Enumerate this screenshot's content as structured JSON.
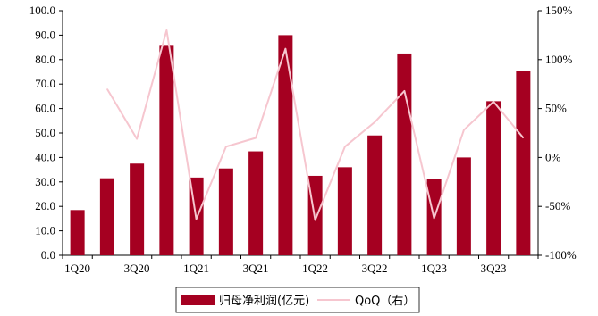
{
  "chart_data": {
    "type": "bar+line",
    "categories": [
      "1Q20",
      "2Q20",
      "3Q20",
      "4Q20",
      "1Q21",
      "2Q21",
      "3Q21",
      "4Q21",
      "1Q22",
      "2Q22",
      "3Q22",
      "4Q22",
      "1Q23",
      "2Q23",
      "3Q23",
      "4Q23"
    ],
    "x_tick_labels": [
      "1Q20",
      "",
      "3Q20",
      "",
      "1Q21",
      "",
      "3Q21",
      "",
      "1Q22",
      "",
      "3Q22",
      "",
      "1Q23",
      "",
      "3Q23",
      ""
    ],
    "series": [
      {
        "name": "归母净利润(亿元)",
        "type": "bar",
        "axis": "left",
        "color": "#a50021",
        "values": [
          18.5,
          31.5,
          37.5,
          86.0,
          31.8,
          35.5,
          42.5,
          90.0,
          32.5,
          36.0,
          49.0,
          82.5,
          31.3,
          40.0,
          63.0,
          75.5
        ]
      },
      {
        "name": "QoQ（右）",
        "type": "line",
        "axis": "right",
        "color": "#f6c6cf",
        "values": [
          null,
          70,
          19,
          130,
          -63,
          11,
          20,
          111,
          -64,
          11,
          36,
          68,
          -62,
          28,
          57,
          20
        ]
      }
    ],
    "y_left": {
      "min": 0,
      "max": 100,
      "step": 10,
      "tick_labels": [
        "0.0",
        "10.0",
        "20.0",
        "30.0",
        "40.0",
        "50.0",
        "60.0",
        "70.0",
        "80.0",
        "90.0",
        "100.0"
      ]
    },
    "y_right": {
      "min": -100,
      "max": 150,
      "step": 50,
      "tick_labels": [
        "-100%",
        "-50%",
        "0%",
        "50%",
        "100%",
        "150%"
      ]
    },
    "legend": {
      "position": "bottom",
      "entries": [
        "归母净利润(亿元)",
        "QoQ（右）"
      ]
    }
  }
}
